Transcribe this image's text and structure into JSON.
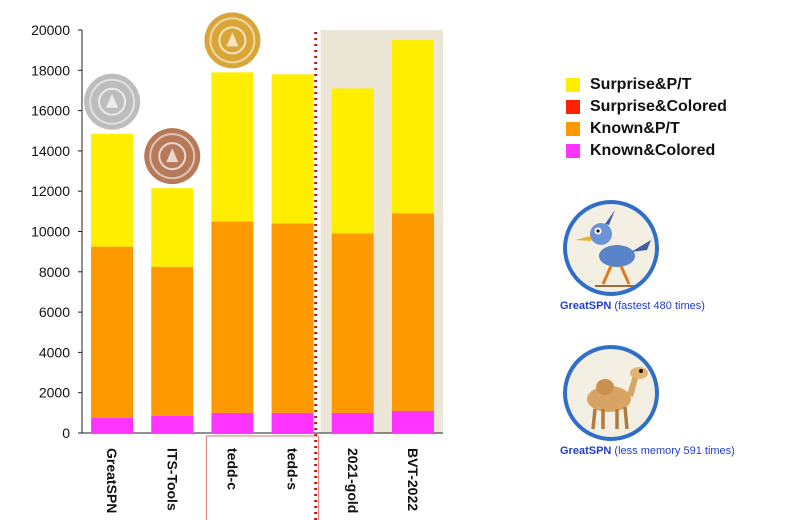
{
  "chart_data": {
    "type": "bar",
    "stacked": true,
    "categories": [
      "GreatSPN",
      "ITS-Tools",
      "tedd-c",
      "tedd-s",
      "2021-gold",
      "BVT-2022"
    ],
    "series": [
      {
        "name": "Known&Colored",
        "color": "#ff33ff",
        "values": [
          750,
          850,
          1000,
          1000,
          1000,
          1100
        ]
      },
      {
        "name": "Known&P/T",
        "color": "#ff9900",
        "values": [
          8500,
          7400,
          9500,
          9400,
          8900,
          9800
        ]
      },
      {
        "name": "Surprise&Colored",
        "color": "#ff2200",
        "values": [
          0,
          0,
          0,
          0,
          0,
          0
        ]
      },
      {
        "name": "Surprise&P/T",
        "color": "#ffee00",
        "values": [
          5600,
          3900,
          7400,
          7400,
          7200,
          8600
        ]
      }
    ],
    "legend_order": [
      "Surprise&P/T",
      "Surprise&Colored",
      "Known&P/T",
      "Known&Colored"
    ],
    "yticks": [
      "0",
      "2000",
      "4000",
      "6000",
      "8000",
      "10000",
      "12000",
      "14000",
      "16000",
      "18000",
      "20000"
    ],
    "ylim": [
      0,
      20000
    ],
    "grid": false,
    "legend_position": "right",
    "medals": {
      "GreatSPN": "silver",
      "ITS-Tools": "bronze",
      "tedd-c": "gold"
    },
    "highlighted_categories": [
      "tedd-c",
      "tedd-s"
    ],
    "reference_categories": [
      "2021-gold",
      "BVT-2022"
    ],
    "colors": {
      "medal_gold": "#d9a537",
      "medal_silver": "#bdbdbd",
      "medal_bronze": "#b77a58",
      "reference_bg": "#ece6d6",
      "divider": "#cc1111",
      "highlight_box": "#e28a8a"
    }
  },
  "awards": [
    {
      "tool": "GreatSPN",
      "desc": "(fastest 480 times)",
      "icon": "roadrunner-icon"
    },
    {
      "tool": "GreatSPN",
      "desc": "(less memory 591 times)",
      "icon": "camel-icon"
    }
  ]
}
